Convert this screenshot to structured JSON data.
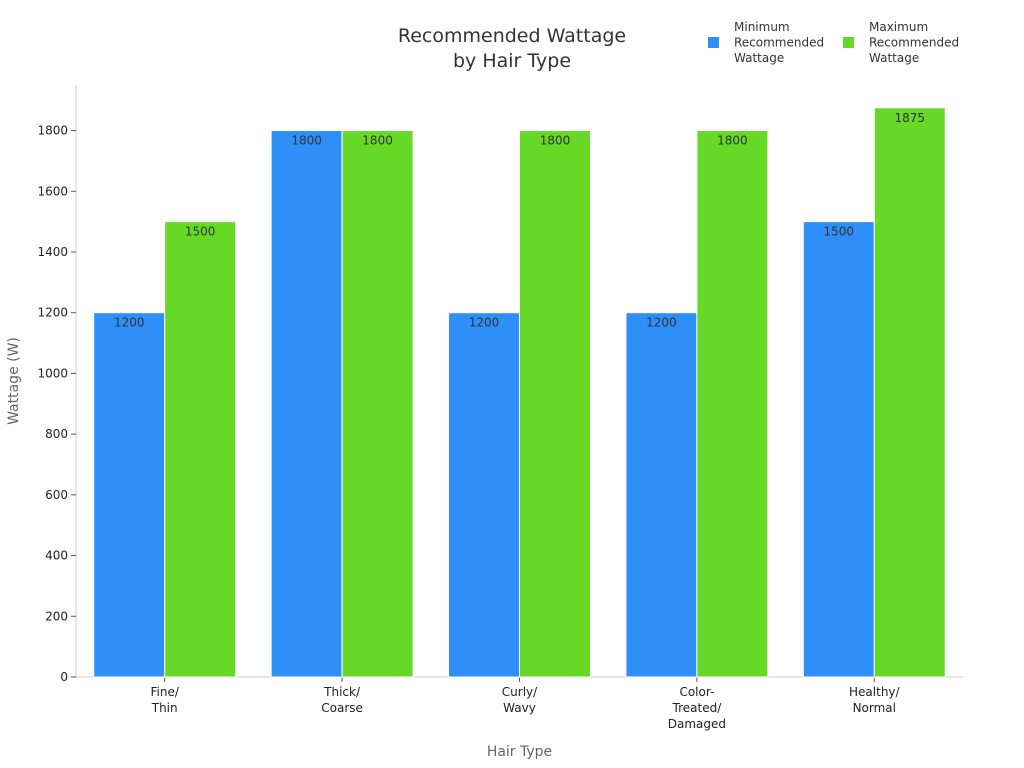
{
  "chart_data": {
    "type": "bar",
    "title": [
      "Recommended Wattage",
      "by Hair Type"
    ],
    "xlabel": "Hair Type",
    "ylabel": "Wattage (W)",
    "ylim": [
      0,
      1950
    ],
    "yticks": [
      0,
      200,
      400,
      600,
      800,
      1000,
      1200,
      1400,
      1600,
      1800
    ],
    "grid": false,
    "legend_position": "top-right",
    "categories": [
      [
        "Fine/",
        "Thin"
      ],
      [
        "Thick/",
        "Coarse"
      ],
      [
        "Curly/",
        "Wavy"
      ],
      [
        "Color-",
        "Treated/",
        "Damaged"
      ],
      [
        "Healthy/",
        "Normal"
      ]
    ],
    "series": [
      {
        "name": [
          "Minimum",
          "Recommended",
          "Wattage"
        ],
        "color": "#2d8ff7",
        "values": [
          1200,
          1800,
          1200,
          1200,
          1500
        ]
      },
      {
        "name": [
          "Maximum",
          "Recommended",
          "Wattage"
        ],
        "color": "#66d927",
        "values": [
          1500,
          1800,
          1800,
          1800,
          1875
        ]
      }
    ]
  }
}
